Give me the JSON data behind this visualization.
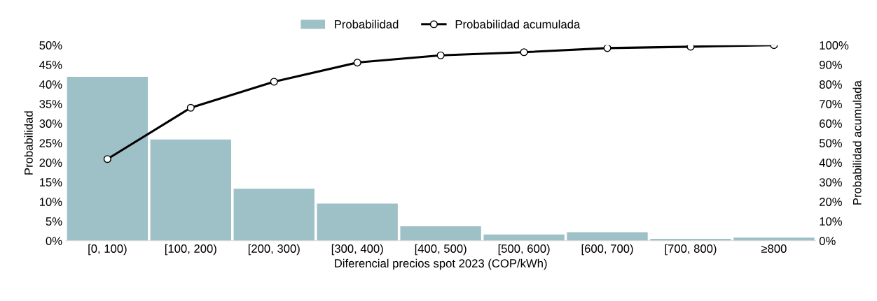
{
  "chart_data": {
    "type": "bar",
    "xlabel": "Diferencial precios spot 2023 (COP/kWh)",
    "ylabel": "Probabilidad",
    "y2label": "Probabilidad acumulada",
    "categories": [
      "[0, 100)",
      "[100, 200)",
      "[200, 300)",
      "[300, 400)",
      "[400, 500)",
      "[500, 600)",
      "[600, 700)",
      "[700, 800)",
      "≥800"
    ],
    "series": [
      {
        "name": "Probabilidad",
        "color": "#9dc1c6",
        "values": [
          41.9,
          25.9,
          13.3,
          9.5,
          3.7,
          1.6,
          2.2,
          0.5,
          0.8
        ]
      },
      {
        "name": "Probabilidad acumulada",
        "type": "line",
        "axis": "y2",
        "color": "#000000",
        "marker": "circle",
        "values": [
          41.8,
          68.0,
          81.3,
          91.1,
          94.8,
          96.4,
          98.5,
          99.2,
          100
        ]
      }
    ],
    "ylim": [
      0,
      50
    ],
    "yticks": [
      {
        "value": 0,
        "label": "0%"
      },
      {
        "value": 5,
        "label": "5%"
      },
      {
        "value": 10,
        "label": "10%"
      },
      {
        "value": 15,
        "label": "15%"
      },
      {
        "value": 20,
        "label": "20%"
      },
      {
        "value": 25,
        "label": "25%"
      },
      {
        "value": 30,
        "label": "30%"
      },
      {
        "value": 35,
        "label": "35%"
      },
      {
        "value": 40,
        "label": "40%"
      },
      {
        "value": 45,
        "label": "45%"
      },
      {
        "value": 50,
        "label": "50%"
      }
    ],
    "y2lim": [
      0,
      100
    ],
    "y2ticks": [
      {
        "value": 0,
        "label": "0%"
      },
      {
        "value": 10,
        "label": "10%"
      },
      {
        "value": 20,
        "label": "20%"
      },
      {
        "value": 30,
        "label": "30%"
      },
      {
        "value": 40,
        "label": "40%"
      },
      {
        "value": 50,
        "label": "50%"
      },
      {
        "value": 60,
        "label": "60%"
      },
      {
        "value": 70,
        "label": "70%"
      },
      {
        "value": 80,
        "label": "80%"
      },
      {
        "value": 90,
        "label": "90%"
      },
      {
        "value": 100,
        "label": "100%"
      }
    ],
    "legend": "top",
    "grid": false
  }
}
